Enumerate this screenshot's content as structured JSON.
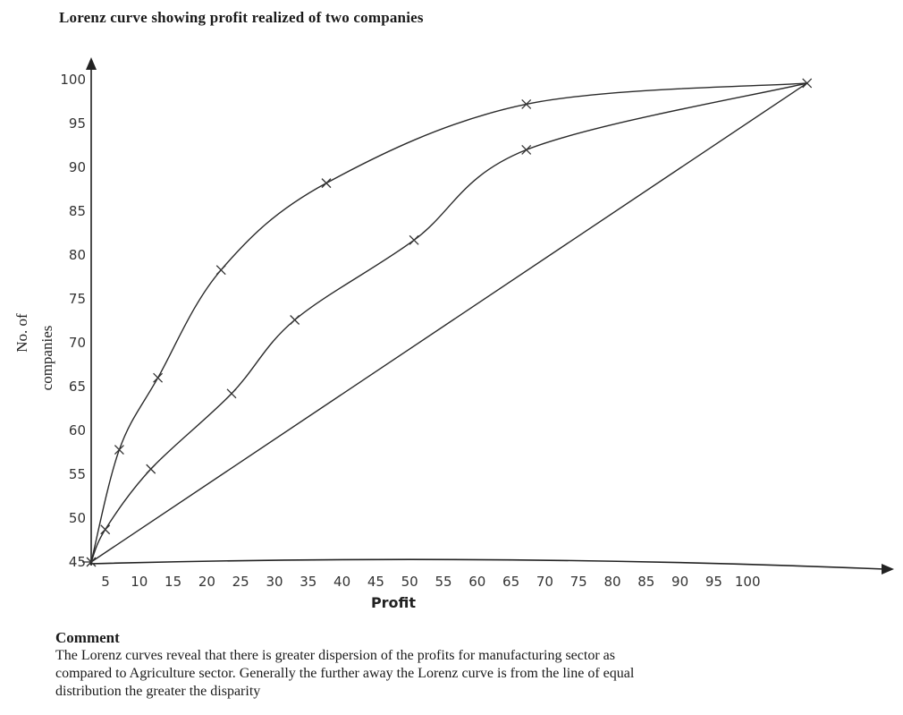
{
  "title": "Lorenz curve showing profit realized of two companies",
  "chart_data": {
    "type": "line",
    "title": "Lorenz curve showing profit realized of two companies",
    "xlabel": "Profit",
    "ylabel_lines": [
      "No. of",
      "companies"
    ],
    "xlim": [
      0,
      107
    ],
    "ylim": [
      45,
      100
    ],
    "x_ticks": [
      "5",
      "10",
      "15",
      "20",
      "25",
      "30",
      "35",
      "40",
      "45",
      "50",
      "55",
      "60",
      "65",
      "70",
      "75",
      "80",
      "85",
      "90",
      "95",
      "100"
    ],
    "y_ticks": [
      "45",
      "50",
      "55",
      "60",
      "65",
      "70",
      "75",
      "80",
      "85",
      "90",
      "95",
      "100"
    ],
    "series": [
      {
        "role": "upper-curve",
        "points": [
          [
            3,
            45
          ],
          [
            7,
            57.8
          ],
          [
            12.5,
            66
          ],
          [
            21.5,
            78.3
          ],
          [
            36.5,
            88.2
          ],
          [
            65,
            97.2
          ],
          [
            105,
            99.6
          ]
        ]
      },
      {
        "role": "middle-curve",
        "points": [
          [
            3,
            45
          ],
          [
            5,
            48.7
          ],
          [
            11.5,
            55.6
          ],
          [
            23,
            64.2
          ],
          [
            32,
            72.6
          ],
          [
            49,
            81.7
          ],
          [
            65,
            92
          ],
          [
            105,
            99.6
          ]
        ]
      },
      {
        "role": "equality-line",
        "points": [
          [
            3,
            45
          ],
          [
            105,
            99.6
          ]
        ]
      }
    ],
    "marker": "x",
    "grid": false,
    "legend": "none"
  },
  "comment": {
    "heading": "Comment",
    "lines": [
      "The Lorenz curves reveal that there is greater dispersion of the profits for manufacturing sector as",
      "compared to Agriculture sector. Generally the further away the Lorenz curve is from the line of equal",
      "distribution the greater the disparity"
    ]
  }
}
